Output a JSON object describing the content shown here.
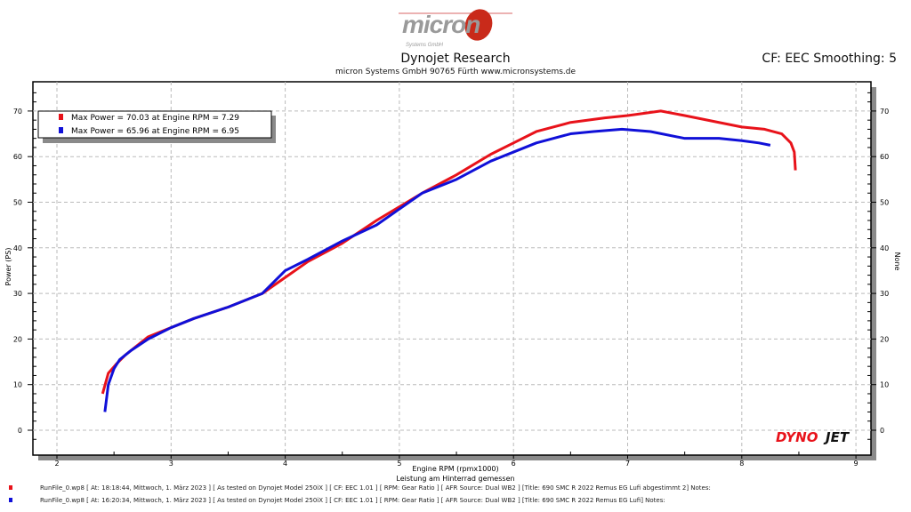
{
  "header": {
    "logo_text": "micron",
    "logo_sub": "Systems GmbH",
    "title": "Dynojet Research",
    "subtitle": "micron Systems GmbH  90765 Fürth www.micronsystems.de",
    "cf_label": "CF: EEC Smoothing: 5"
  },
  "chart_data": {
    "type": "line",
    "xlabel": "Engine RPM (rpmx1000)",
    "ylabel": "Power (PS)",
    "y2label": "None",
    "note": "Leistung am Hinterrad gemessen",
    "xlim": [
      1.8,
      9.2
    ],
    "ylim": [
      -2.5,
      76
    ],
    "xticks": [
      2,
      3,
      4,
      5,
      6,
      7,
      8,
      9
    ],
    "yticks": [
      0,
      10,
      20,
      30,
      40,
      50,
      60,
      70
    ],
    "grid": true,
    "legend_position": "top-left",
    "series": [
      {
        "name": "Max Power = 70.03 at Engine RPM = 7.29",
        "color": "#e8121a",
        "x": [
          2.4,
          2.45,
          2.52,
          2.6,
          2.7,
          2.8,
          3.0,
          3.2,
          3.5,
          3.8,
          4.0,
          4.2,
          4.5,
          4.8,
          5.0,
          5.2,
          5.5,
          5.8,
          6.0,
          6.2,
          6.5,
          6.8,
          7.0,
          7.29,
          7.5,
          7.8,
          8.0,
          8.2,
          8.35,
          8.43,
          8.46,
          8.47
        ],
        "y": [
          8,
          12.5,
          14.5,
          16.5,
          18.5,
          20.5,
          22.5,
          24.5,
          27,
          30,
          33.5,
          37,
          41,
          46,
          49,
          52,
          56,
          60.5,
          63,
          65.5,
          67.5,
          68.5,
          69,
          70,
          69,
          67.5,
          66.5,
          66,
          65,
          63,
          61,
          57
        ]
      },
      {
        "name": "Max Power = 65.96 at Engine RPM = 6.95",
        "color": "#1010d8",
        "x": [
          2.42,
          2.45,
          2.5,
          2.55,
          2.65,
          2.8,
          3.0,
          3.2,
          3.5,
          3.8,
          4.0,
          4.2,
          4.5,
          4.8,
          5.0,
          5.2,
          5.5,
          5.8,
          6.0,
          6.2,
          6.5,
          6.7,
          6.95,
          7.2,
          7.5,
          7.8,
          8.0,
          8.15,
          8.25
        ],
        "y": [
          4,
          10,
          13.5,
          15.5,
          17.5,
          20,
          22.5,
          24.5,
          27,
          30,
          35,
          37.5,
          41.5,
          45,
          48.5,
          52,
          55,
          59,
          61,
          63,
          65,
          65.5,
          66,
          65.5,
          64,
          64,
          63.5,
          63,
          62.5
        ]
      }
    ]
  },
  "footer": {
    "runs": [
      {
        "text": "RunFile_0.wp8  [ At:  18:18:44, Mittwoch, 1. März 2023 ]  [ As tested on Dynojet Model 250iX ]  [ CF:  EEC 1.01 ]  [ RPM:  Gear Ratio ]  [ AFR Source:  Dual WB2 ]  [Title:  690 SMC R 2022 Remus EG Lufi abgestimmt 2]   Notes:",
        "color": "#e8121a"
      },
      {
        "text": "RunFile_0.wp8  [ At:  16:20:34, Mittwoch, 1. März 2023 ]  [ As tested on Dynojet Model 250iX ]  [ CF:  EEC 1.01 ]  [ RPM:  Gear Ratio ]  [ AFR Source:  Dual WB2 ]  [Title:  690 SMC R 2022 Remus EG Lufi]   Notes:",
        "color": "#1010d8"
      }
    ]
  },
  "brand": {
    "dyno": "DYNO",
    "jet": "JET"
  }
}
